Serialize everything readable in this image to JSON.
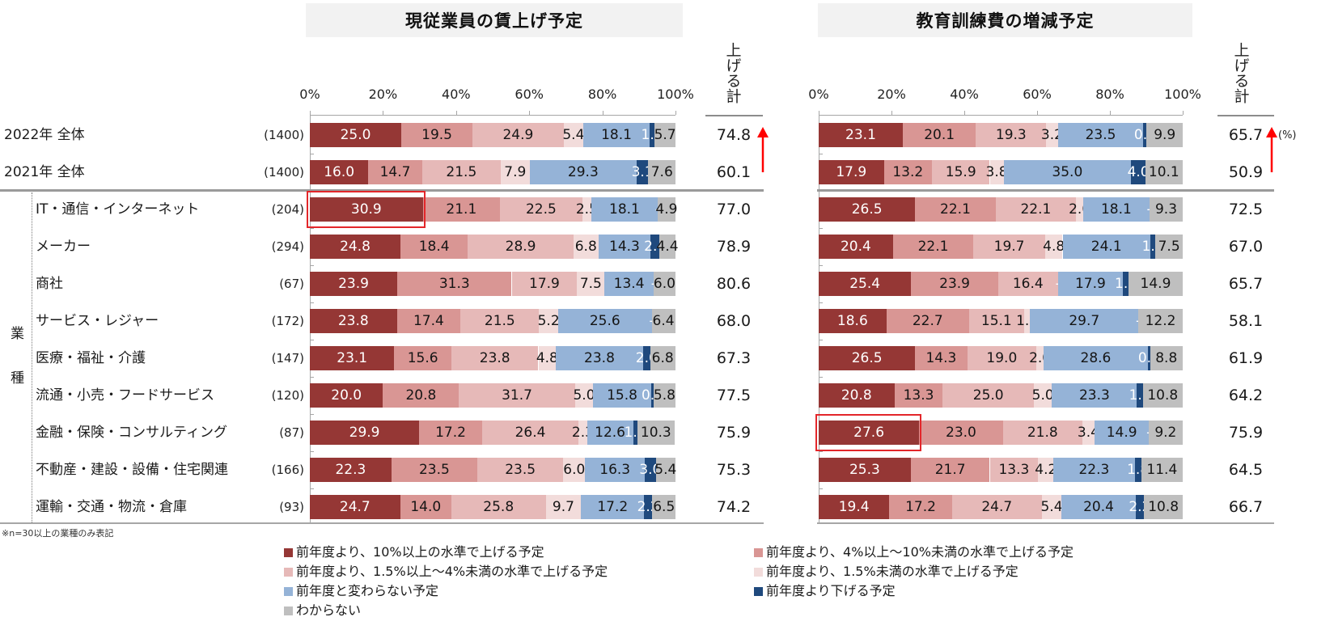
{
  "group_label": "業種",
  "footnote": "※n=30以上の業種のみ表記",
  "unit_label": "(%)",
  "chart_data": [
    {
      "type": "bar",
      "orientation": "horizontal",
      "stacked": true,
      "title": "現従業員の賃上げ予定",
      "xlim": [
        0,
        100
      ],
      "xticks": [
        "0%",
        "20%",
        "40%",
        "60%",
        "80%",
        "100%"
      ],
      "grid": false,
      "legend": {
        "placement": "bottom",
        "columns": 2
      },
      "categories": [
        "2022年 全体",
        "2021年 全体",
        "IT・通信・インターネット",
        "メーカー",
        "商社",
        "サービス・レジャー",
        "医療・福祉・介護",
        "流通・小売・フードサービス",
        "金融・保険・コンサルティング",
        "不動産・建設・設備・住宅関連",
        "運輸・交通・物流・倉庫"
      ],
      "sample_sizes": [
        1400,
        1400,
        204,
        294,
        67,
        172,
        147,
        120,
        87,
        166,
        93
      ],
      "series": [
        {
          "name": "前年度より、10%以上の水準で上げる予定",
          "color": "#953735",
          "values": [
            25.0,
            16.0,
            30.9,
            24.8,
            23.9,
            23.8,
            23.1,
            20.0,
            29.9,
            22.3,
            24.7
          ]
        },
        {
          "name": "前年度より、4%以上～10%未満の水準で上げる予定",
          "color": "#d99694",
          "values": [
            19.5,
            14.7,
            21.1,
            18.4,
            31.3,
            17.4,
            15.6,
            20.8,
            17.2,
            23.5,
            14.0
          ]
        },
        {
          "name": "前年度より、1.5%以上～4%未満の水準で上げる予定",
          "color": "#e6b9b8",
          "values": [
            24.9,
            21.5,
            22.5,
            28.9,
            17.9,
            21.5,
            23.8,
            31.7,
            26.4,
            23.5,
            25.8
          ]
        },
        {
          "name": "前年度より、1.5%未満の水準で上げる予定",
          "color": "#f2dcdb",
          "values": [
            5.4,
            7.9,
            2.5,
            6.8,
            7.5,
            5.2,
            4.8,
            5.0,
            2.3,
            6.0,
            9.7
          ]
        },
        {
          "name": "前年度と変わらない予定",
          "color": "#95b3d7",
          "values": [
            18.1,
            29.3,
            18.1,
            14.3,
            13.4,
            25.6,
            23.8,
            15.8,
            12.6,
            16.3,
            17.2
          ]
        },
        {
          "name": "前年度より下げる予定",
          "color": "#1f497d",
          "values": [
            1.4,
            3.1,
            0,
            2.4,
            0,
            0,
            2.0,
            0.8,
            1.1,
            3.0,
            2.2
          ]
        },
        {
          "name": "わからない",
          "color": "#bfbfbf",
          "values": [
            5.7,
            7.6,
            4.9,
            4.4,
            6.0,
            6.4,
            6.8,
            5.8,
            10.3,
            5.4,
            6.5
          ]
        }
      ],
      "total_label": "上げる計",
      "totals": [
        74.8,
        60.1,
        77.0,
        78.9,
        80.6,
        68.0,
        67.3,
        77.5,
        75.9,
        75.3,
        74.2
      ],
      "highlight": {
        "category": "IT・通信・インターネット",
        "series": "前年度より、10%以上の水準で上げる予定",
        "color": "#e3262a"
      },
      "annotation": {
        "type": "arrow",
        "from": "2021年 全体",
        "to": "2022年 全体",
        "direction": "up",
        "color": "#ff0000"
      }
    },
    {
      "type": "bar",
      "orientation": "horizontal",
      "stacked": true,
      "title": "教育訓練費の増減予定",
      "xlim": [
        0,
        100
      ],
      "xticks": [
        "0%",
        "20%",
        "40%",
        "60%",
        "80%",
        "100%"
      ],
      "grid": false,
      "legend": {
        "placement": "bottom",
        "columns": 2
      },
      "categories": [
        "2022年 全体",
        "2021年 全体",
        "IT・通信・インターネット",
        "メーカー",
        "商社",
        "サービス・レジャー",
        "医療・福祉・介護",
        "流通・小売・フードサービス",
        "金融・保険・コンサルティング",
        "不動産・建設・設備・住宅関連",
        "運輸・交通・物流・倉庫"
      ],
      "sample_sizes": [
        1400,
        1400,
        204,
        294,
        67,
        172,
        147,
        120,
        87,
        166,
        93
      ],
      "series": [
        {
          "name": "前年度より、10%以上の水準で上げる予定",
          "color": "#953735",
          "values": [
            23.1,
            17.9,
            26.5,
            20.4,
            25.4,
            18.6,
            26.5,
            20.8,
            27.6,
            25.3,
            19.4
          ]
        },
        {
          "name": "前年度より、4%以上～10%未満の水準で上げる予定",
          "color": "#d99694",
          "values": [
            20.1,
            13.2,
            22.1,
            22.1,
            23.9,
            22.7,
            14.3,
            13.3,
            23.0,
            21.7,
            17.2
          ]
        },
        {
          "name": "前年度より、1.5%以上～4%未満の水準で上げる予定",
          "color": "#e6b9b8",
          "values": [
            19.3,
            15.9,
            22.1,
            19.7,
            16.4,
            15.1,
            19.0,
            25.0,
            21.8,
            13.3,
            24.7
          ]
        },
        {
          "name": "前年度より、1.5%未満の水準で上げる予定",
          "color": "#f2dcdb",
          "values": [
            3.2,
            3.8,
            2.0,
            4.8,
            0,
            1.7,
            2.0,
            5.0,
            3.4,
            4.2,
            5.4
          ]
        },
        {
          "name": "前年度と変わらない予定",
          "color": "#95b3d7",
          "values": [
            23.5,
            35.0,
            18.1,
            24.1,
            17.9,
            29.7,
            28.6,
            23.3,
            14.9,
            22.3,
            20.4
          ]
        },
        {
          "name": "前年度より下げる予定",
          "color": "#1f497d",
          "values": [
            0.9,
            4.0,
            0,
            1.4,
            1.5,
            0,
            0.7,
            1.7,
            0,
            1.8,
            2.2
          ]
        },
        {
          "name": "わからない",
          "color": "#bfbfbf",
          "values": [
            9.9,
            10.1,
            9.3,
            7.5,
            14.9,
            12.2,
            8.8,
            10.8,
            9.2,
            11.4,
            10.8
          ]
        }
      ],
      "total_label": "上げる計",
      "totals": [
        65.7,
        50.9,
        72.5,
        67.0,
        65.7,
        58.1,
        61.9,
        64.2,
        75.9,
        64.5,
        66.7
      ],
      "highlight": {
        "category": "金融・保険・コンサルティング",
        "series": "前年度より、10%以上の水準で上げる予定",
        "color": "#e3262a"
      },
      "annotation": {
        "type": "arrow",
        "from": "2021年 全体",
        "to": "2022年 全体",
        "direction": "up",
        "color": "#ff0000"
      }
    }
  ]
}
